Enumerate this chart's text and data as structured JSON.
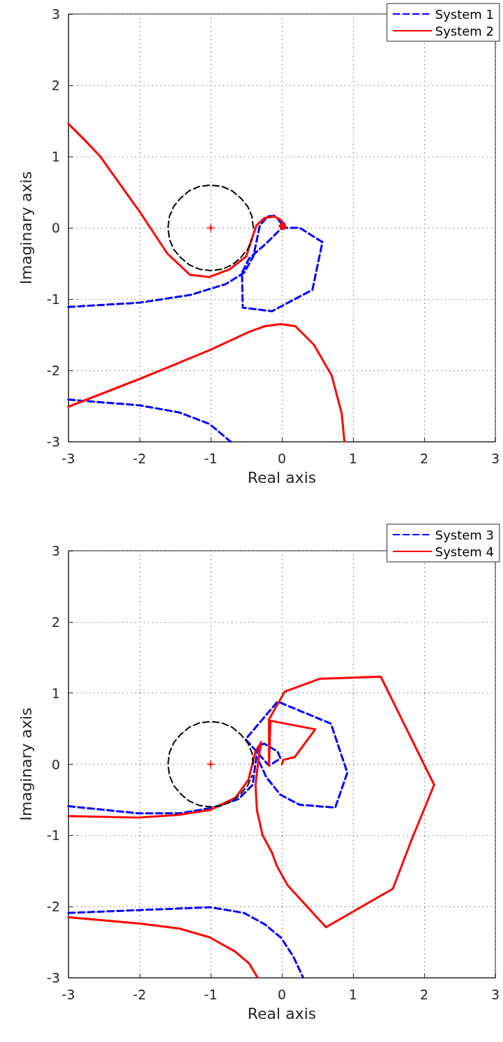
{
  "chart_data": [
    {
      "type": "line",
      "xlabel": "Real axis",
      "ylabel": "Imaginary axis",
      "xlim": [
        -3,
        3
      ],
      "ylim": [
        -3,
        3
      ],
      "xticks": [
        -3,
        -2,
        -1,
        0,
        1,
        2,
        3
      ],
      "yticks": [
        -3,
        -2,
        -1,
        0,
        1,
        2,
        3
      ],
      "grid": true,
      "legend": "top right",
      "series": [
        {
          "name": "System 1",
          "color": "#0000ff",
          "line_style": "dashed",
          "x": [
            -3,
            -2,
            -1.28,
            -0.79,
            -0.53,
            -0.4,
            -0.31,
            -0.2,
            -0.09,
            0,
            0.02,
            0.25,
            0.57,
            0.43,
            -0.14,
            -0.55,
            -0.56,
            -0.46,
            -0.2,
            0,
            null,
            -3,
            -2,
            -1.44,
            -1.02,
            -0.72
          ],
          "values": [
            -1.11,
            -1.05,
            -0.94,
            -0.79,
            -0.63,
            -0.4,
            0.03,
            0.16,
            0.17,
            0.05,
            0,
            0,
            -0.2,
            -0.87,
            -1.17,
            -1.12,
            -0.63,
            -0.43,
            -0.2,
            0,
            null,
            -2.41,
            -2.49,
            -2.59,
            -2.75,
            -3
          ]
        },
        {
          "name": "System 2",
          "color": "#ff0000",
          "line_style": "solid",
          "x": [
            -3,
            -2.74,
            -2.56,
            -2,
            -1.61,
            -1.29,
            -1.02,
            -0.73,
            -0.5,
            -0.45,
            -0.36,
            -0.24,
            -0.11,
            -0.03,
            0.04,
            0.05,
            0,
            -0.03,
            0,
            0.02,
            0,
            null,
            -3,
            -2,
            -1,
            -0.46,
            -0.24,
            -0.01,
            0.19,
            0.45,
            0.7,
            0.84,
            0.88
          ],
          "values": [
            1.46,
            1.2,
            1.01,
            0.23,
            -0.36,
            -0.66,
            -0.69,
            -0.58,
            -0.4,
            -0.24,
            0.03,
            0.14,
            0.16,
            0.12,
            0.05,
            0,
            -0.02,
            0.03,
            0.05,
            0.02,
            0,
            null,
            -2.51,
            -2.12,
            -1.71,
            -1.46,
            -1.38,
            -1.35,
            -1.38,
            -1.64,
            -2.07,
            -2.6,
            -3
          ]
        },
        {
          "color": "#000000",
          "line_style": "dashed",
          "x": [
            -0.4,
            -0.42,
            -0.48,
            -0.58,
            -0.7,
            -0.84,
            -1,
            -1.16,
            -1.3,
            -1.42,
            -1.52,
            -1.58,
            -1.6,
            -1.58,
            -1.52,
            -1.42,
            -1.3,
            -1.16,
            -1,
            -0.84,
            -0.7,
            -0.58,
            -0.48,
            -0.42
          ],
          "values": [
            0,
            0.16,
            0.3,
            0.42,
            0.52,
            0.58,
            0.6,
            0.58,
            0.52,
            0.42,
            0.3,
            0.16,
            0,
            -0.16,
            -0.3,
            -0.42,
            -0.52,
            -0.58,
            -0.6,
            -0.58,
            -0.52,
            -0.42,
            -0.3,
            -0.16
          ]
        },
        {
          "type": "scatter",
          "marker": "star",
          "color": "#ff0000",
          "x": [
            -1
          ],
          "values": [
            0
          ]
        }
      ]
    },
    {
      "type": "line",
      "xlabel": "Real axis",
      "ylabel": "Imaginary axis",
      "xlim": [
        -3,
        3
      ],
      "ylim": [
        -3,
        3
      ],
      "xticks": [
        -3,
        -2,
        -1,
        0,
        1,
        2,
        3
      ],
      "yticks": [
        -3,
        -2,
        -1,
        0,
        1,
        2,
        3
      ],
      "grid": true,
      "legend": "top right",
      "series": [
        {
          "name": "System 3",
          "color": "#0000ff",
          "line_style": "dashed",
          "x": [
            -3,
            -2.02,
            -1.43,
            -0.96,
            -0.61,
            -0.41,
            -0.37,
            -0.33,
            -0.25,
            -0.06,
            -0.02,
            -0.18,
            -0.51,
            -0.06,
            0.69,
            0.92,
            0.75,
            0.25,
            -0.02,
            -0.22,
            -0.33,
            null,
            -3,
            -2,
            -1,
            -0.53,
            -0.24,
            -0.01,
            0.16,
            0.3
          ],
          "values": [
            -0.59,
            -0.69,
            -0.69,
            -0.61,
            -0.49,
            -0.29,
            0.02,
            0.25,
            0.29,
            0.18,
            0.08,
            -0.02,
            0.35,
            0.88,
            0.57,
            -0.12,
            -0.61,
            -0.57,
            -0.43,
            -0.18,
            0.06,
            null,
            -2.09,
            -2.05,
            -2.01,
            -2.09,
            -2.25,
            -2.44,
            -2.7,
            -3
          ]
        },
        {
          "name": "System 4",
          "color": "#ff0000",
          "line_style": "solid",
          "x": [
            -3,
            -2.02,
            -1.43,
            -1,
            -0.65,
            -0.47,
            -0.37,
            -0.29,
            -0.33,
            -0.37,
            -0.35,
            -0.27,
            -0.14,
            -0.07,
            0.08,
            0.62,
            1.56,
            1.82,
            2.14,
            1.39,
            0.53,
            0.04,
            -0.18,
            -0.18,
            -0.16,
            0.47,
            0.18,
            0.02,
            0,
            null,
            -3,
            -2,
            -1.44,
            -1.02,
            -0.66,
            -0.46,
            -0.34
          ],
          "values": [
            -0.73,
            -0.75,
            -0.71,
            -0.64,
            -0.47,
            -0.22,
            0.18,
            0.31,
            0.05,
            -0.29,
            -0.65,
            -1.0,
            -1.24,
            -1.43,
            -1.7,
            -2.29,
            -1.75,
            -1.07,
            -0.29,
            1.23,
            1.2,
            1.02,
            0.63,
            -0.02,
            0.61,
            0.49,
            0.1,
            0.06,
            0,
            null,
            -2.15,
            -2.24,
            -2.31,
            -2.43,
            -2.63,
            -2.8,
            -3
          ]
        },
        {
          "color": "#000000",
          "line_style": "dashed",
          "x": [
            -0.4,
            -0.42,
            -0.48,
            -0.58,
            -0.7,
            -0.84,
            -1,
            -1.16,
            -1.3,
            -1.42,
            -1.52,
            -1.58,
            -1.6,
            -1.58,
            -1.52,
            -1.42,
            -1.3,
            -1.16,
            -1,
            -0.84,
            -0.7,
            -0.58,
            -0.48,
            -0.42
          ],
          "values": [
            0,
            0.16,
            0.3,
            0.42,
            0.52,
            0.58,
            0.6,
            0.58,
            0.52,
            0.42,
            0.3,
            0.16,
            0,
            -0.16,
            -0.3,
            -0.42,
            -0.52,
            -0.58,
            -0.6,
            -0.58,
            -0.52,
            -0.42,
            -0.3,
            -0.16
          ]
        },
        {
          "type": "scatter",
          "marker": "star",
          "color": "#ff0000",
          "x": [
            -1
          ],
          "values": [
            0
          ]
        }
      ]
    }
  ]
}
